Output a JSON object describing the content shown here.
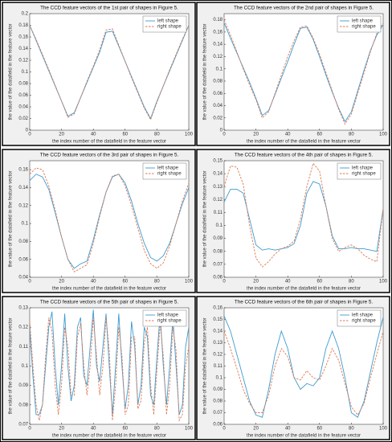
{
  "chart_data": [
    {
      "type": "line",
      "title": "The CCD feature vectors of the 1st pair of shapes in Figure 5.",
      "xlabel": "the index number of the datafield in the feature vector",
      "ylabel": "the value of the datafield in the feature vector",
      "x": [
        0,
        4,
        8,
        12,
        16,
        20,
        24,
        28,
        32,
        36,
        40,
        44,
        48,
        52,
        56,
        60,
        64,
        68,
        72,
        76,
        80,
        84,
        88,
        92,
        96,
        100
      ],
      "xlim": [
        0,
        100
      ],
      "xticks": [
        0,
        20,
        40,
        60,
        80,
        100
      ],
      "ylim": [
        0,
        0.2
      ],
      "yticks": [
        0,
        0.02,
        0.04,
        0.06,
        0.08,
        0.1,
        0.12,
        0.14,
        0.16,
        0.18,
        0.2
      ],
      "legend": "upper right",
      "series": [
        {
          "name": "left shape",
          "color": "#3d9bd0",
          "linestyle": "solid",
          "values": [
            0.18,
            0.154,
            0.128,
            0.102,
            0.076,
            0.05,
            0.024,
            0.03,
            0.056,
            0.082,
            0.108,
            0.134,
            0.168,
            0.17,
            0.144,
            0.118,
            0.092,
            0.066,
            0.04,
            0.02,
            0.05,
            0.076,
            0.102,
            0.128,
            0.154,
            0.18
          ]
        },
        {
          "name": "right shape",
          "color": "#e0774f",
          "linestyle": "dashed",
          "values": [
            0.18,
            0.156,
            0.13,
            0.104,
            0.077,
            0.05,
            0.022,
            0.028,
            0.056,
            0.084,
            0.11,
            0.138,
            0.172,
            0.174,
            0.146,
            0.118,
            0.09,
            0.064,
            0.038,
            0.018,
            0.048,
            0.076,
            0.104,
            0.13,
            0.156,
            0.18
          ]
        }
      ]
    },
    {
      "type": "line",
      "title": "The CCD feature vectors of the 2nd pair of shapes in Figure 5.",
      "xlabel": "the index number of the datafield in the feature vector",
      "ylabel": "the value of the datafield in the feature vector",
      "x": [
        0,
        4,
        8,
        12,
        16,
        20,
        24,
        28,
        32,
        36,
        40,
        44,
        48,
        52,
        56,
        60,
        64,
        68,
        72,
        76,
        80,
        84,
        88,
        92,
        96,
        100
      ],
      "xlim": [
        0,
        100
      ],
      "xticks": [
        0,
        20,
        40,
        60,
        80,
        100
      ],
      "ylim": [
        0,
        0.19
      ],
      "yticks": [
        0,
        0.02,
        0.04,
        0.06,
        0.08,
        0.1,
        0.12,
        0.14,
        0.16,
        0.18
      ],
      "legend": "upper right",
      "series": [
        {
          "name": "left shape",
          "color": "#3d9bd0",
          "linestyle": "solid",
          "values": [
            0.175,
            0.15,
            0.126,
            0.102,
            0.078,
            0.052,
            0.024,
            0.032,
            0.058,
            0.085,
            0.112,
            0.14,
            0.166,
            0.168,
            0.148,
            0.12,
            0.09,
            0.062,
            0.036,
            0.014,
            0.03,
            0.064,
            0.098,
            0.13,
            0.155,
            0.172
          ]
        },
        {
          "name": "right shape",
          "color": "#e0774f",
          "linestyle": "dashed",
          "values": [
            0.18,
            0.155,
            0.128,
            0.1,
            0.074,
            0.05,
            0.02,
            0.03,
            0.06,
            0.09,
            0.12,
            0.146,
            0.168,
            0.17,
            0.15,
            0.124,
            0.094,
            0.064,
            0.034,
            0.01,
            0.026,
            0.06,
            0.094,
            0.128,
            0.158,
            0.175
          ]
        }
      ]
    },
    {
      "type": "line",
      "title": "The CCD feature vectors of the 3rd pair of shapes in Figure 5.",
      "xlabel": "the index number of the datafield in the feature vector",
      "ylabel": "the value of the datafield in the feature vector",
      "x": [
        0,
        4,
        8,
        12,
        16,
        20,
        24,
        28,
        32,
        36,
        40,
        44,
        48,
        52,
        56,
        60,
        64,
        68,
        72,
        76,
        80,
        84,
        88,
        92,
        96,
        100
      ],
      "xlim": [
        0,
        100
      ],
      "xticks": [
        0,
        20,
        40,
        60,
        80,
        100
      ],
      "ylim": [
        0.04,
        0.17
      ],
      "yticks": [
        0.04,
        0.06,
        0.08,
        0.1,
        0.12,
        0.14,
        0.16
      ],
      "legend": "upper right",
      "series": [
        {
          "name": "left shape",
          "color": "#3d9bd0",
          "linestyle": "solid",
          "values": [
            0.148,
            0.155,
            0.152,
            0.138,
            0.112,
            0.085,
            0.06,
            0.05,
            0.055,
            0.058,
            0.082,
            0.11,
            0.135,
            0.152,
            0.155,
            0.145,
            0.125,
            0.1,
            0.078,
            0.062,
            0.058,
            0.064,
            0.078,
            0.1,
            0.122,
            0.14
          ]
        },
        {
          "name": "right shape",
          "color": "#e0774f",
          "linestyle": "dashed",
          "values": [
            0.155,
            0.162,
            0.16,
            0.142,
            0.115,
            0.085,
            0.06,
            0.046,
            0.05,
            0.054,
            0.078,
            0.108,
            0.135,
            0.153,
            0.155,
            0.142,
            0.12,
            0.095,
            0.07,
            0.055,
            0.05,
            0.056,
            0.075,
            0.1,
            0.125,
            0.145
          ]
        }
      ]
    },
    {
      "type": "line",
      "title": "The CCD feature vectors of the 4th pair of shapes in Figure 5.",
      "xlabel": "the index number of the datafield in the feature vector",
      "ylabel": "the value of the datafield in the feature vector",
      "x": [
        0,
        4,
        8,
        12,
        16,
        20,
        24,
        28,
        32,
        36,
        40,
        44,
        48,
        52,
        56,
        60,
        64,
        68,
        72,
        76,
        80,
        84,
        88,
        92,
        96,
        100
      ],
      "xlim": [
        0,
        100
      ],
      "xticks": [
        0,
        20,
        40,
        60,
        80,
        100
      ],
      "ylim": [
        0.06,
        0.15
      ],
      "yticks": [
        0.06,
        0.07,
        0.08,
        0.09,
        0.1,
        0.11,
        0.12,
        0.13,
        0.14,
        0.15
      ],
      "legend": "upper right",
      "series": [
        {
          "name": "left shape",
          "color": "#3d9bd0",
          "linestyle": "solid",
          "values": [
            0.118,
            0.128,
            0.128,
            0.125,
            0.105,
            0.085,
            0.081,
            0.082,
            0.081,
            0.082,
            0.083,
            0.086,
            0.1,
            0.125,
            0.134,
            0.132,
            0.115,
            0.092,
            0.082,
            0.082,
            0.083,
            0.082,
            0.082,
            0.081,
            0.08,
            0.113
          ]
        },
        {
          "name": "right shape",
          "color": "#e0774f",
          "linestyle": "dashed",
          "values": [
            0.13,
            0.146,
            0.145,
            0.132,
            0.1,
            0.075,
            0.068,
            0.072,
            0.078,
            0.082,
            0.084,
            0.088,
            0.105,
            0.13,
            0.148,
            0.142,
            0.115,
            0.09,
            0.08,
            0.083,
            0.085,
            0.082,
            0.077,
            0.074,
            0.072,
            0.113
          ]
        }
      ]
    },
    {
      "type": "line",
      "title": "The CCD feature vectors of the 5th pair of shapes in Figure 5.",
      "xlabel": "the index number of the datafield in the feature vector",
      "ylabel": "the value of the datafield in the feature vector",
      "x": [
        0,
        2,
        4,
        6,
        8,
        10,
        12,
        14,
        16,
        18,
        20,
        22,
        24,
        26,
        28,
        30,
        32,
        34,
        36,
        38,
        40,
        42,
        44,
        46,
        48,
        50,
        52,
        54,
        56,
        58,
        60,
        62,
        64,
        66,
        68,
        70,
        72,
        74,
        76,
        78,
        80,
        82,
        84,
        86,
        88,
        90,
        92,
        94,
        96,
        98,
        100
      ],
      "xlim": [
        0,
        100
      ],
      "xticks": [
        0,
        20,
        40,
        60,
        80,
        100
      ],
      "ylim": [
        0.07,
        0.13
      ],
      "yticks": [
        0.07,
        0.08,
        0.09,
        0.1,
        0.11,
        0.12,
        0.13
      ],
      "legend": "upper right",
      "series": [
        {
          "name": "left shape",
          "color": "#3d9bd0",
          "linestyle": "solid",
          "values": [
            0.12,
            0.095,
            0.075,
            0.075,
            0.08,
            0.1,
            0.12,
            0.128,
            0.1,
            0.08,
            0.1,
            0.127,
            0.1,
            0.082,
            0.09,
            0.12,
            0.125,
            0.095,
            0.09,
            0.11,
            0.129,
            0.1,
            0.092,
            0.11,
            0.127,
            0.1,
            0.075,
            0.1,
            0.127,
            0.1,
            0.078,
            0.09,
            0.123,
            0.11,
            0.08,
            0.09,
            0.12,
            0.115,
            0.085,
            0.08,
            0.105,
            0.127,
            0.1,
            0.08,
            0.1,
            0.125,
            0.1,
            0.075,
            0.08,
            0.11,
            0.12
          ]
        },
        {
          "name": "right shape",
          "color": "#e0774f",
          "linestyle": "dashed",
          "values": [
            0.123,
            0.1,
            0.08,
            0.072,
            0.08,
            0.105,
            0.125,
            0.118,
            0.09,
            0.075,
            0.09,
            0.12,
            0.11,
            0.085,
            0.085,
            0.115,
            0.122,
            0.1,
            0.085,
            0.1,
            0.125,
            0.105,
            0.085,
            0.1,
            0.125,
            0.108,
            0.072,
            0.09,
            0.12,
            0.105,
            0.075,
            0.08,
            0.115,
            0.115,
            0.078,
            0.082,
            0.112,
            0.12,
            0.09,
            0.075,
            0.098,
            0.122,
            0.105,
            0.075,
            0.09,
            0.12,
            0.108,
            0.072,
            0.075,
            0.1,
            0.11
          ]
        }
      ]
    },
    {
      "type": "line",
      "title": "The CCD feature vectors of the 6th pair of shapes in Figure 5.",
      "xlabel": "the index number of the datafield in the feature vector",
      "ylabel": "the value of the datafield in the feature vector",
      "x": [
        0,
        4,
        8,
        12,
        16,
        20,
        24,
        28,
        32,
        36,
        40,
        44,
        48,
        52,
        56,
        60,
        64,
        68,
        72,
        76,
        80,
        84,
        88,
        92,
        96,
        100
      ],
      "xlim": [
        0,
        100
      ],
      "xticks": [
        0,
        20,
        40,
        60,
        80,
        100
      ],
      "ylim": [
        0.06,
        0.16
      ],
      "yticks": [
        0.06,
        0.07,
        0.08,
        0.09,
        0.1,
        0.11,
        0.12,
        0.13,
        0.14,
        0.15,
        0.16
      ],
      "legend": "upper right",
      "series": [
        {
          "name": "left shape",
          "color": "#3d9bd0",
          "linestyle": "solid",
          "values": [
            0.153,
            0.14,
            0.12,
            0.1,
            0.08,
            0.068,
            0.066,
            0.09,
            0.12,
            0.14,
            0.125,
            0.1,
            0.09,
            0.095,
            0.093,
            0.1,
            0.125,
            0.14,
            0.125,
            0.1,
            0.07,
            0.066,
            0.08,
            0.105,
            0.13,
            0.152
          ]
        },
        {
          "name": "right shape",
          "color": "#e0774f",
          "linestyle": "dashed",
          "values": [
            0.14,
            0.125,
            0.108,
            0.09,
            0.078,
            0.07,
            0.07,
            0.085,
            0.11,
            0.125,
            0.118,
            0.1,
            0.098,
            0.106,
            0.1,
            0.098,
            0.11,
            0.125,
            0.115,
            0.095,
            0.075,
            0.068,
            0.078,
            0.1,
            0.12,
            0.14
          ]
        }
      ]
    }
  ]
}
